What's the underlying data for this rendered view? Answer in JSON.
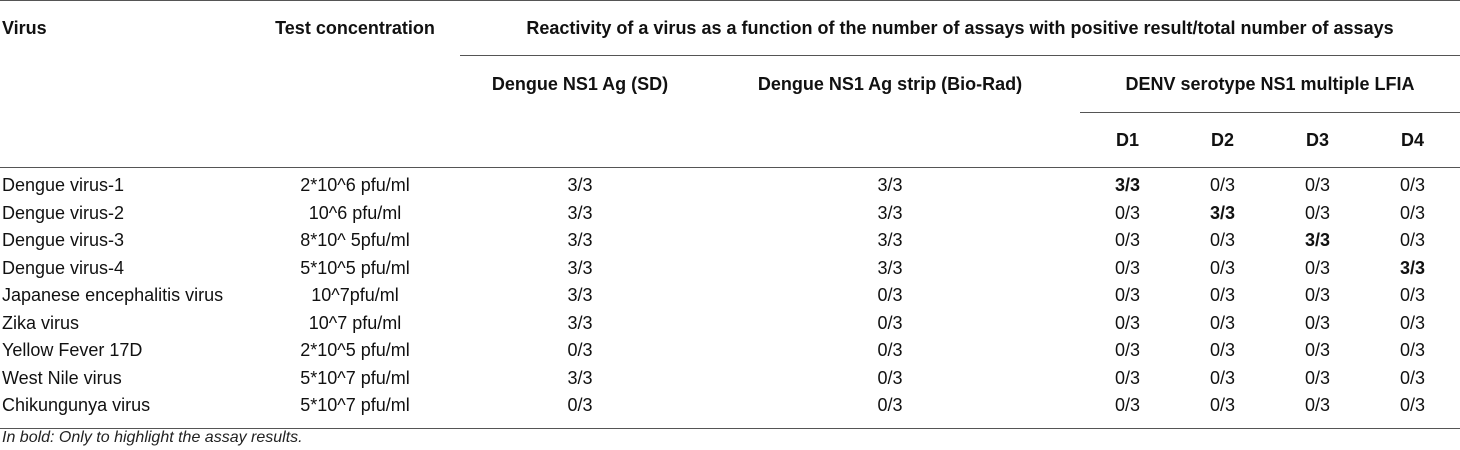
{
  "header": {
    "col_virus": "Virus",
    "col_test_concentration": "Test concentration",
    "col_reactivity": "Reactivity of a virus as a function of the number of assays with positive result/total number of assays",
    "col_sd": "Dengue NS1 Ag (SD)",
    "col_biorad": "Dengue NS1 Ag strip (Bio-Rad)",
    "col_lfia": "DENV serotype NS1 multiple LFIA",
    "sub_d1": "D1",
    "sub_d2": "D2",
    "sub_d3": "D3",
    "sub_d4": "D4"
  },
  "rows": [
    {
      "virus": "Dengue virus-1",
      "conc": "2*10^6 pfu/ml",
      "sd": "3/3",
      "biorad": "3/3",
      "d1": "3/3",
      "d2": "0/3",
      "d3": "0/3",
      "d4": "0/3",
      "bold": "d1"
    },
    {
      "virus": "Dengue virus-2",
      "conc": "10^6 pfu/ml",
      "sd": "3/3",
      "biorad": "3/3",
      "d1": "0/3",
      "d2": "3/3",
      "d3": "0/3",
      "d4": "0/3",
      "bold": "d2"
    },
    {
      "virus": "Dengue virus-3",
      "conc": "8*10^ 5pfu/ml",
      "sd": "3/3",
      "biorad": "3/3",
      "d1": "0/3",
      "d2": "0/3",
      "d3": "3/3",
      "d4": "0/3",
      "bold": "d3"
    },
    {
      "virus": "Dengue virus-4",
      "conc": "5*10^5 pfu/ml",
      "sd": "3/3",
      "biorad": "3/3",
      "d1": "0/3",
      "d2": "0/3",
      "d3": "0/3",
      "d4": "3/3",
      "bold": "d4"
    },
    {
      "virus": "Japanese encephalitis virus",
      "conc": "10^7pfu/ml",
      "sd": "3/3",
      "biorad": "0/3",
      "d1": "0/3",
      "d2": "0/3",
      "d3": "0/3",
      "d4": "0/3",
      "bold": ""
    },
    {
      "virus": "Zika virus",
      "conc": "10^7 pfu/ml",
      "sd": "3/3",
      "biorad": "0/3",
      "d1": "0/3",
      "d2": "0/3",
      "d3": "0/3",
      "d4": "0/3",
      "bold": ""
    },
    {
      "virus": "Yellow Fever 17D",
      "conc": "2*10^5 pfu/ml",
      "sd": "0/3",
      "biorad": "0/3",
      "d1": "0/3",
      "d2": "0/3",
      "d3": "0/3",
      "d4": "0/3",
      "bold": ""
    },
    {
      "virus": "West Nile virus",
      "conc": "5*10^7 pfu/ml",
      "sd": "3/3",
      "biorad": "0/3",
      "d1": "0/3",
      "d2": "0/3",
      "d3": "0/3",
      "d4": "0/3",
      "bold": ""
    },
    {
      "virus": "Chikungunya virus",
      "conc": "5*10^7 pfu/ml",
      "sd": "0/3",
      "biorad": "0/3",
      "d1": "0/3",
      "d2": "0/3",
      "d3": "0/3",
      "d4": "0/3",
      "bold": ""
    }
  ],
  "footnote": "In bold: Only to highlight the assay results."
}
